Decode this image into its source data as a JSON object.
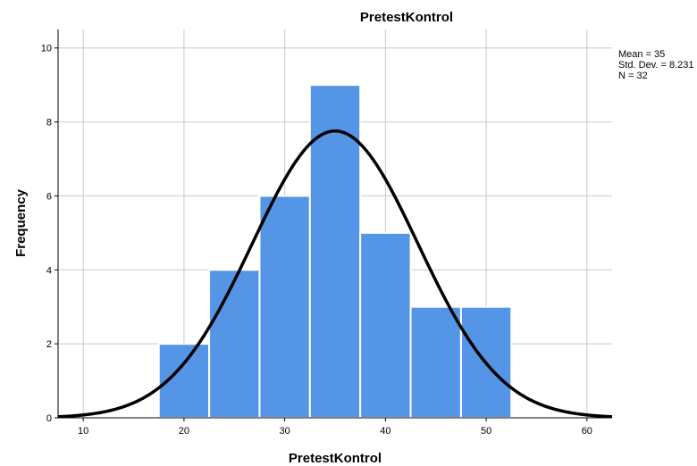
{
  "chart_data": {
    "type": "bar",
    "title": "PretestKontrol",
    "xlabel": "PretestKontrol",
    "ylabel": "Frequency",
    "bins": [
      {
        "start": 17.5,
        "end": 22.5,
        "value": 2
      },
      {
        "start": 22.5,
        "end": 27.5,
        "value": 4
      },
      {
        "start": 27.5,
        "end": 32.5,
        "value": 6
      },
      {
        "start": 32.5,
        "end": 37.5,
        "value": 9
      },
      {
        "start": 37.5,
        "end": 42.5,
        "value": 5
      },
      {
        "start": 42.5,
        "end": 47.5,
        "value": 3
      },
      {
        "start": 47.5,
        "end": 52.5,
        "value": 3
      }
    ],
    "xlim": [
      7.5,
      62.5
    ],
    "ylim": [
      0,
      10.5
    ],
    "xticks": [
      10,
      20,
      30,
      40,
      50,
      60
    ],
    "yticks": [
      0,
      2,
      4,
      6,
      8,
      10
    ],
    "grid": true,
    "normal_curve": {
      "mean": 35,
      "sd": 8.231,
      "n": 32,
      "bin_width": 5
    },
    "stats_lines": [
      "Mean = 35",
      "Std. Dev. = 8.231",
      "N = 32"
    ],
    "bar_color": "#5595e6",
    "bar_edge_color": "#ffffff",
    "curve_color": "#000000",
    "grid_color": "#c8c8c8"
  }
}
